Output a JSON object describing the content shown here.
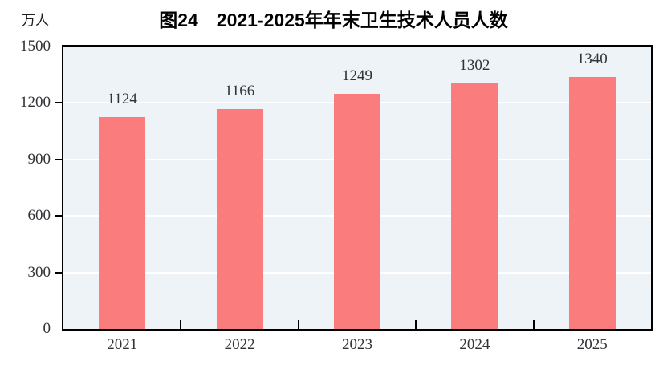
{
  "chart_data": {
    "type": "bar",
    "title": "图24　2021-2025年年末卫生技术人员人数",
    "ylabel": "万人",
    "xlabel": "",
    "categories": [
      "2021",
      "2022",
      "2023",
      "2024",
      "2025"
    ],
    "values": [
      1124,
      1166,
      1249,
      1302,
      1340
    ],
    "data_labels": [
      "1124",
      "1166",
      "1249",
      "1302",
      "1340"
    ],
    "ylim": [
      0,
      1500
    ],
    "yticks": [
      0,
      300,
      600,
      900,
      1200,
      1500
    ],
    "grid": true,
    "legend_position": "none",
    "colors": {
      "bar": "#FB7C7C",
      "plot_background": "#EDF3F7",
      "gridline": "#FFFFFF",
      "axis": "#000000",
      "text": "#323237"
    }
  }
}
